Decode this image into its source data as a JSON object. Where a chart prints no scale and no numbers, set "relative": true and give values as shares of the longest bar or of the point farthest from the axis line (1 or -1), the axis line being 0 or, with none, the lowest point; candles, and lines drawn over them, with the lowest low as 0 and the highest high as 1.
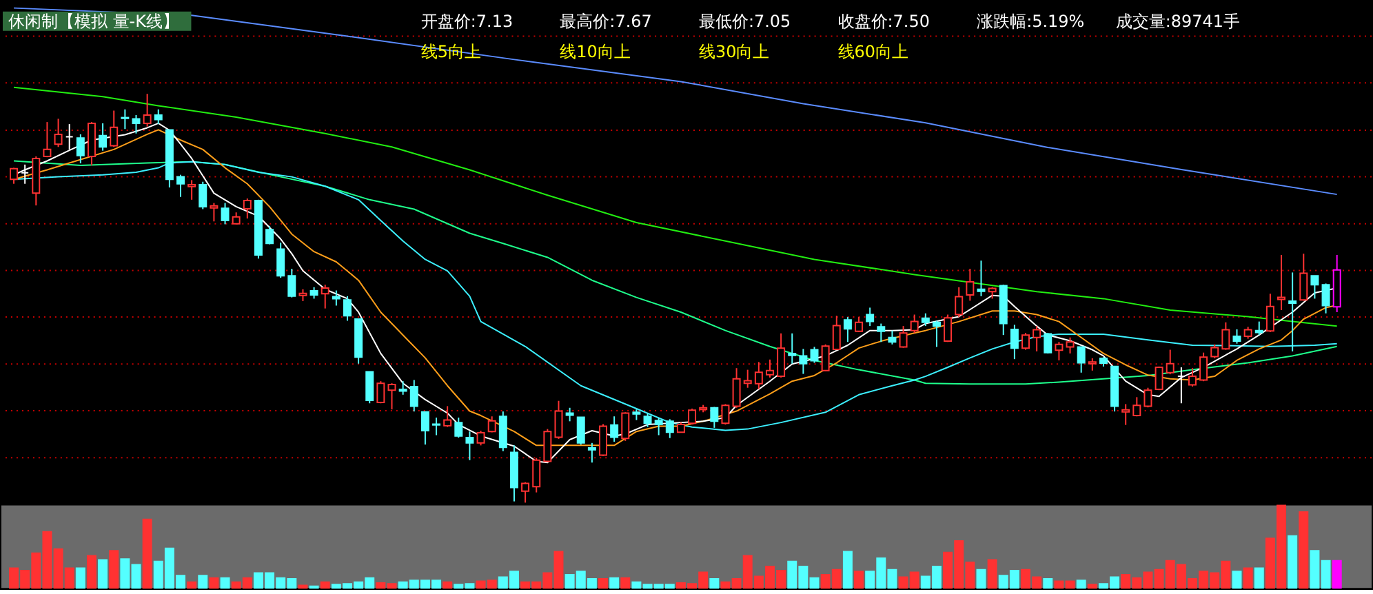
{
  "chart_data": [
    {
      "type": "candlestick",
      "title": "休闲制【模拟 量-K线】",
      "relative": true,
      "tick_labels": false,
      "annotations": [
        "开盘价:7.13",
        "最高价:7.67",
        "最低价:7.05",
        "收盘价:7.50",
        "涨跌幅:5.19%",
        "成交量:89741手",
        "线5向上",
        "线10向上",
        "线30向上",
        "线60向上"
      ],
      "categories": [
        null,
        null,
        null,
        null,
        null,
        null,
        null,
        null,
        null,
        null,
        null,
        null,
        null,
        null,
        null,
        null,
        null,
        null,
        null,
        null,
        null,
        null,
        null,
        null,
        null,
        null,
        null,
        null,
        null,
        null,
        null,
        null,
        null,
        null,
        null,
        null,
        null,
        null,
        null,
        null,
        null,
        null,
        null,
        null,
        null,
        null,
        null,
        null,
        null,
        null,
        null,
        null,
        null,
        null,
        null,
        null,
        null,
        null,
        null,
        null,
        null,
        null,
        null,
        null,
        null,
        null,
        null,
        null,
        null,
        null,
        null,
        null,
        null,
        null,
        null,
        null,
        null,
        null,
        null,
        null,
        null,
        null,
        null,
        null,
        null,
        null,
        null,
        null,
        null,
        null,
        null,
        null,
        null,
        null,
        null,
        null,
        null,
        null,
        null,
        null,
        null,
        null,
        null,
        null,
        null,
        null,
        null,
        null,
        null,
        null,
        null,
        null,
        null,
        null,
        null,
        null,
        null,
        null,
        null,
        null
      ],
      "ohlc": [
        [
          0.791,
          0.819,
          0.78,
          0.817
        ],
        [
          0.807,
          0.827,
          0.78,
          0.807
        ],
        [
          0.757,
          0.847,
          0.727,
          0.842
        ],
        [
          0.847,
          0.931,
          0.845,
          0.864
        ],
        [
          0.877,
          0.939,
          0.87,
          0.901
        ],
        [
          0.895,
          0.926,
          0.864,
          0.895
        ],
        [
          0.892,
          0.901,
          0.83,
          0.849
        ],
        [
          0.847,
          0.931,
          0.825,
          0.928
        ],
        [
          0.898,
          0.928,
          0.861,
          0.87
        ],
        [
          0.873,
          0.959,
          0.87,
          0.918
        ],
        [
          0.942,
          0.962,
          0.914,
          0.94
        ],
        [
          0.939,
          0.948,
          0.903,
          0.928
        ],
        [
          0.928,
          1.0,
          0.92,
          0.948
        ],
        [
          0.948,
          0.962,
          0.926,
          0.937
        ],
        [
          0.912,
          0.912,
          0.771,
          0.791
        ],
        [
          0.797,
          0.802,
          0.748,
          0.78
        ],
        [
          0.773,
          0.789,
          0.741,
          0.778
        ],
        [
          0.778,
          0.785,
          0.718,
          0.724
        ],
        [
          0.721,
          0.733,
          0.688,
          0.726
        ],
        [
          0.72,
          0.733,
          0.681,
          0.69
        ],
        [
          0.682,
          0.71,
          0.681,
          0.699
        ],
        [
          0.719,
          0.744,
          0.695,
          0.739
        ],
        [
          0.739,
          0.741,
          0.597,
          0.606
        ],
        [
          0.668,
          0.677,
          0.632,
          0.634
        ],
        [
          0.62,
          0.636,
          0.55,
          0.555
        ],
        [
          0.555,
          0.572,
          0.502,
          0.505
        ],
        [
          0.507,
          0.522,
          0.493,
          0.512
        ],
        [
          0.518,
          0.527,
          0.499,
          0.508
        ],
        [
          0.511,
          0.533,
          0.475,
          0.525
        ],
        [
          0.504,
          0.519,
          0.482,
          0.499
        ],
        [
          0.496,
          0.505,
          0.445,
          0.457
        ],
        [
          0.449,
          0.449,
          0.34,
          0.356
        ],
        [
          0.32,
          0.32,
          0.243,
          0.25
        ],
        [
          0.245,
          0.297,
          0.243,
          0.292
        ],
        [
          0.275,
          0.292,
          0.228,
          0.289
        ],
        [
          0.277,
          0.297,
          0.264,
          0.273
        ],
        [
          0.284,
          0.3,
          0.223,
          0.236
        ],
        [
          0.222,
          0.222,
          0.142,
          0.176
        ],
        [
          0.192,
          0.208,
          0.165,
          0.19
        ],
        [
          0.188,
          0.236,
          0.185,
          0.202
        ],
        [
          0.196,
          0.208,
          0.159,
          0.163
        ],
        [
          0.159,
          0.174,
          0.104,
          0.146
        ],
        [
          0.146,
          0.176,
          0.14,
          0.171
        ],
        [
          0.174,
          0.211,
          0.172,
          0.2
        ],
        [
          0.211,
          0.223,
          0.126,
          0.135
        ],
        [
          0.123,
          0.14,
          0.003,
          0.037
        ],
        [
          0.028,
          0.05,
          0.0,
          0.047
        ],
        [
          0.039,
          0.109,
          0.025,
          0.104
        ],
        [
          0.101,
          0.18,
          0.099,
          0.174
        ],
        [
          0.16,
          0.249,
          0.156,
          0.224
        ],
        [
          0.219,
          0.232,
          0.199,
          0.214
        ],
        [
          0.209,
          0.209,
          0.142,
          0.146
        ],
        [
          0.134,
          0.146,
          0.098,
          0.129
        ],
        [
          0.116,
          0.192,
          0.114,
          0.187
        ],
        [
          0.19,
          0.211,
          0.149,
          0.16
        ],
        [
          0.157,
          0.221,
          0.151,
          0.219
        ],
        [
          0.221,
          0.228,
          0.202,
          0.217
        ],
        [
          0.211,
          0.219,
          0.185,
          0.194
        ],
        [
          0.201,
          0.208,
          0.165,
          0.191
        ],
        [
          0.199,
          0.204,
          0.158,
          0.172
        ],
        [
          0.172,
          0.196,
          0.171,
          0.191
        ],
        [
          0.194,
          0.23,
          0.191,
          0.226
        ],
        [
          0.228,
          0.239,
          0.221,
          0.232
        ],
        [
          0.232,
          0.234,
          0.183,
          0.199
        ],
        [
          0.194,
          0.241,
          0.191,
          0.238
        ],
        [
          0.236,
          0.329,
          0.232,
          0.303
        ],
        [
          0.292,
          0.325,
          0.281,
          0.298
        ],
        [
          0.291,
          0.344,
          0.277,
          0.319
        ],
        [
          0.313,
          0.35,
          0.306,
          0.323
        ],
        [
          0.309,
          0.414,
          0.306,
          0.378
        ],
        [
          0.365,
          0.414,
          0.34,
          0.36
        ],
        [
          0.359,
          0.376,
          0.315,
          0.34
        ],
        [
          0.374,
          0.381,
          0.342,
          0.347
        ],
        [
          0.323,
          0.387,
          0.322,
          0.383
        ],
        [
          0.375,
          0.457,
          0.373,
          0.433
        ],
        [
          0.447,
          0.454,
          0.393,
          0.425
        ],
        [
          0.419,
          0.454,
          0.417,
          0.441
        ],
        [
          0.46,
          0.477,
          0.432,
          0.443
        ],
        [
          0.43,
          0.438,
          0.393,
          0.419
        ],
        [
          0.404,
          0.421,
          0.387,
          0.393
        ],
        [
          0.381,
          0.432,
          0.379,
          0.415
        ],
        [
          0.421,
          0.46,
          0.415,
          0.443
        ],
        [
          0.451,
          0.463,
          0.432,
          0.441
        ],
        [
          0.441,
          0.445,
          0.381,
          0.432
        ],
        [
          0.395,
          0.46,
          0.393,
          0.452
        ],
        [
          0.46,
          0.527,
          0.454,
          0.504
        ],
        [
          0.508,
          0.572,
          0.494,
          0.54
        ],
        [
          0.522,
          0.592,
          0.505,
          0.517
        ],
        [
          0.516,
          0.527,
          0.499,
          0.524
        ],
        [
          0.531,
          0.533,
          0.41,
          0.438
        ],
        [
          0.424,
          0.435,
          0.351,
          0.378
        ],
        [
          0.378,
          0.415,
          0.374,
          0.41
        ],
        [
          0.404,
          0.432,
          0.37,
          0.423
        ],
        [
          0.413,
          0.415,
          0.365,
          0.367
        ],
        [
          0.373,
          0.393,
          0.348,
          0.387
        ],
        [
          0.381,
          0.404,
          0.365,
          0.393
        ],
        [
          0.381,
          0.381,
          0.318,
          0.342
        ],
        [
          0.34,
          0.353,
          0.323,
          0.344
        ],
        [
          0.353,
          0.356,
          0.333,
          0.341
        ],
        [
          0.333,
          0.333,
          0.223,
          0.236
        ],
        [
          0.222,
          0.241,
          0.19,
          0.227
        ],
        [
          0.213,
          0.258,
          0.211,
          0.238
        ],
        [
          0.236,
          0.281,
          0.233,
          0.275
        ],
        [
          0.277,
          0.333,
          0.275,
          0.331
        ],
        [
          0.318,
          0.374,
          0.314,
          0.34
        ],
        [
          0.309,
          0.331,
          0.243,
          0.309
        ],
        [
          0.288,
          0.329,
          0.284,
          0.309
        ],
        [
          0.3,
          0.367,
          0.297,
          0.356
        ],
        [
          0.357,
          0.387,
          0.353,
          0.379
        ],
        [
          0.376,
          0.441,
          0.374,
          0.423
        ],
        [
          0.407,
          0.424,
          0.389,
          0.395
        ],
        [
          0.407,
          0.43,
          0.401,
          0.423
        ],
        [
          0.421,
          0.443,
          0.41,
          0.416
        ],
        [
          0.42,
          0.511,
          0.417,
          0.48
        ],
        [
          0.497,
          0.606,
          0.471,
          0.502
        ],
        [
          0.493,
          0.563,
          0.37,
          0.488
        ],
        [
          0.496,
          0.609,
          0.494,
          0.561
        ],
        [
          0.555,
          0.555,
          0.499,
          0.533
        ],
        [
          0.533,
          0.536,
          0.463,
          0.482
        ],
        [
          0.479,
          0.606,
          0.466,
          0.569
        ]
      ],
      "colors": [
        "#ff3232",
        "#ffffff",
        "#ff3232",
        "#ff3232",
        "#ff3232",
        "#ffffff",
        "#54ffff",
        "#ff3232",
        "#54ffff",
        "#ff3232",
        "#54ffff",
        "#54ffff",
        "#ff3232",
        "#54ffff",
        "#54ffff",
        "#54ffff",
        "#ff3232",
        "#54ffff",
        "#ff3232",
        "#54ffff",
        "#ff3232",
        "#ff3232",
        "#54ffff",
        "#54ffff",
        "#54ffff",
        "#54ffff",
        "#ff3232",
        "#54ffff",
        "#ff3232",
        "#54ffff",
        "#54ffff",
        "#54ffff",
        "#54ffff",
        "#ff3232",
        "#ff3232",
        "#54ffff",
        "#54ffff",
        "#54ffff",
        "#54ffff",
        "#ff3232",
        "#54ffff",
        "#54ffff",
        "#ff3232",
        "#ff3232",
        "#54ffff",
        "#54ffff",
        "#ff3232",
        "#ff3232",
        "#ff3232",
        "#ff3232",
        "#54ffff",
        "#54ffff",
        "#54ffff",
        "#ff3232",
        "#54ffff",
        "#ff3232",
        "#54ffff",
        "#54ffff",
        "#54ffff",
        "#54ffff",
        "#ff3232",
        "#ff3232",
        "#ff3232",
        "#54ffff",
        "#ff3232",
        "#ff3232",
        "#ff3232",
        "#ff3232",
        "#ff3232",
        "#ff3232",
        "#54ffff",
        "#54ffff",
        "#54ffff",
        "#ff3232",
        "#ff3232",
        "#54ffff",
        "#ff3232",
        "#54ffff",
        "#54ffff",
        "#54ffff",
        "#ff3232",
        "#ff3232",
        "#54ffff",
        "#54ffff",
        "#ff3232",
        "#ff3232",
        "#ff3232",
        "#54ffff",
        "#ff3232",
        "#54ffff",
        "#54ffff",
        "#ff3232",
        "#ff3232",
        "#54ffff",
        "#ff3232",
        "#ff3232",
        "#54ffff",
        "#ff3232",
        "#54ffff",
        "#54ffff",
        "#ff3232",
        "#ff3232",
        "#ff3232",
        "#ff3232",
        "#ff3232",
        "#ffffff",
        "#ff3232",
        "#ff3232",
        "#ff3232",
        "#ff3232",
        "#54ffff",
        "#ff3232",
        "#54ffff",
        "#ff3232",
        "#ff3232",
        "#54ffff",
        "#ff3232",
        "#54ffff",
        "#54ffff",
        "#ff00ff"
      ],
      "ref_lines": [
        {
          "axis": "y",
          "value": 1.141,
          "color": "#c80000",
          "line_style": "dotted"
        },
        {
          "axis": "y",
          "value": 1.027,
          "color": "#c80000",
          "line_style": "dotted"
        },
        {
          "axis": "y",
          "value": 0.911,
          "color": "#c80000",
          "line_style": "dotted"
        },
        {
          "axis": "y",
          "value": 0.797,
          "color": "#c80000",
          "line_style": "dotted"
        },
        {
          "axis": "y",
          "value": 0.682,
          "color": "#c80000",
          "line_style": "dotted"
        },
        {
          "axis": "y",
          "value": 0.568,
          "color": "#c80000",
          "line_style": "dotted"
        },
        {
          "axis": "y",
          "value": 0.454,
          "color": "#c80000",
          "line_style": "dotted"
        },
        {
          "axis": "y",
          "value": 0.339,
          "color": "#c80000",
          "line_style": "dotted"
        },
        {
          "axis": "y",
          "value": 0.225,
          "color": "#c80000",
          "line_style": "dotted"
        },
        {
          "axis": "y",
          "value": 0.11,
          "color": "#c80000",
          "line_style": "dotted"
        }
      ],
      "series": [
        {
          "type": "line",
          "color": "#5b8cff",
          "values": [
            1.21,
            null,
            null,
            null,
            null,
            null,
            null,
            null,
            null,
            null,
            null,
            null,
            null,
            null,
            null,
            null,
            1.192,
            null,
            null,
            null,
            null,
            null,
            null,
            null,
            null,
            null,
            null,
            null,
            null,
            null,
            1.141,
            null,
            null,
            null,
            null,
            null,
            null,
            null,
            null,
            null,
            null,
            null,
            null,
            null,
            null,
            1.084,
            null,
            null,
            null,
            null,
            null,
            null,
            null,
            null,
            null,
            null,
            null,
            null,
            null,
            null,
            1.03,
            null,
            null,
            null,
            null,
            null,
            null,
            null,
            null,
            null,
            null,
            0.976,
            null,
            null,
            null,
            null,
            null,
            null,
            null,
            null,
            null,
            null,
            0.929,
            null,
            null,
            null,
            null,
            null,
            null,
            null,
            null,
            null,
            null,
            0.869,
            null,
            null,
            null,
            null,
            null,
            null,
            null,
            null,
            null,
            null,
            null,
            0.815,
            null,
            null,
            null,
            null,
            null,
            null,
            null,
            null,
            null,
            null,
            null,
            null,
            null,
            0.754
          ]
        },
        {
          "type": "line",
          "color": "#22ee11",
          "values": [
            1.016,
            null,
            null,
            null,
            null,
            null,
            null,
            null,
            0.993,
            null,
            null,
            null,
            null,
            0.971,
            null,
            null,
            null,
            null,
            null,
            null,
            0.943,
            null,
            null,
            null,
            null,
            null,
            null,
            null,
            0.903,
            null,
            null,
            null,
            null,
            null,
            0.87,
            null,
            null,
            null,
            null,
            null,
            null,
            0.814,
            null,
            null,
            null,
            null,
            null,
            null,
            0.752,
            null,
            null,
            null,
            null,
            null,
            null,
            null,
            0.685,
            null,
            null,
            null,
            null,
            null,
            null,
            null,
            0.64,
            null,
            null,
            null,
            null,
            null,
            null,
            null,
            0.595,
            null,
            null,
            null,
            null,
            null,
            null,
            null,
            null,
            0.558,
            null,
            null,
            null,
            null,
            0.539,
            null,
            null,
            null,
            null,
            null,
            0.516,
            null,
            null,
            null,
            null,
            null,
            0.499,
            null,
            null,
            null,
            null,
            null,
            0.471,
            null,
            null,
            null,
            null,
            null,
            null,
            0.455,
            null,
            null,
            null,
            0.443,
            null,
            null,
            null,
            0.432
          ]
        },
        {
          "type": "line",
          "color": "#1eff8c",
          "values": [
            0.836,
            null,
            null,
            null,
            null,
            null,
            0.825,
            null,
            null,
            null,
            null,
            null,
            0.831,
            null,
            null,
            null,
            0.834,
            null,
            null,
            0.827,
            null,
            null,
            null,
            null,
            0.797,
            null,
            null,
            null,
            0.774,
            null,
            null,
            null,
            0.741,
            null,
            null,
            null,
            0.718,
            null,
            null,
            null,
            null,
            0.659,
            null,
            null,
            0.634,
            null,
            null,
            null,
            0.6,
            null,
            null,
            null,
            0.544,
            null,
            null,
            null,
            0.502,
            null,
            null,
            null,
            0.466,
            null,
            null,
            null,
            0.421,
            null,
            null,
            null,
            0.382,
            null,
            null,
            null,
            0.348,
            null,
            null,
            null,
            0.325,
            null,
            null,
            null,
            null,
            0.3,
            0.292,
            null,
            null,
            null,
            0.29,
            null,
            null,
            null,
            null,
            0.29,
            null,
            null,
            0.295,
            null,
            null,
            null,
            0.303,
            null,
            null,
            null,
            0.311,
            null,
            null,
            null,
            0.325,
            null,
            null,
            null,
            null,
            0.342,
            null,
            null,
            null,
            0.359,
            null,
            null,
            null,
            0.382
          ]
        },
        {
          "type": "line",
          "color": "#3cf0ff",
          "values": [
            0.791,
            null,
            null,
            null,
            0.797,
            null,
            null,
            null,
            0.802,
            null,
            null,
            0.808,
            null,
            0.819,
            0.831,
            null,
            0.834,
            null,
            null,
            0.827,
            null,
            null,
            0.808,
            null,
            null,
            0.797,
            null,
            null,
            0.774,
            null,
            null,
            0.741,
            null,
            0.69,
            null,
            0.64,
            null,
            0.595,
            null,
            0.567,
            null,
            0.505,
            0.443,
            null,
            null,
            null,
            0.382,
            null,
            null,
            null,
            null,
            0.286,
            null,
            null,
            null,
            null,
            0.23,
            null,
            null,
            0.196,
            null,
            0.185,
            null,
            null,
            0.177,
            null,
            0.18,
            null,
            null,
            0.196,
            null,
            null,
            null,
            0.221,
            null,
            null,
            0.264,
            null,
            null,
            0.286,
            null,
            0.3,
            0.309,
            null,
            0.331,
            null,
            0.354,
            null,
            0.376,
            null,
            0.393,
            null,
            0.406,
            null,
            0.412,
            null,
            null,
            null,
            0.412,
            null,
            null,
            null,
            0.398,
            null,
            null,
            null,
            0.385,
            null,
            null,
            0.384,
            null,
            null,
            null,
            0.382,
            null,
            null,
            null,
            0.385,
            null,
            0.389
          ]
        },
        {
          "type": "line",
          "color": "#ff9f1a",
          "values": [
            0.791,
            null,
            null,
            0.814,
            null,
            0.831,
            null,
            null,
            null,
            0.864,
            null,
            null,
            0.901,
            0.912,
            null,
            0.887,
            null,
            0.864,
            null,
            0.819,
            null,
            0.78,
            null,
            0.724,
            null,
            0.657,
            null,
            0.614,
            null,
            0.589,
            null,
            0.544,
            null,
            0.466,
            null,
            0.41,
            null,
            0.354,
            null,
            0.286,
            null,
            0.224,
            0.213,
            null,
            null,
            0.174,
            null,
            0.14,
            null,
            null,
            0.14,
            null,
            0.14,
            null,
            0.14,
            null,
            0.174,
            null,
            0.187,
            null,
            0.187,
            null,
            0.199,
            null,
            null,
            0.224,
            null,
            null,
            0.266,
            null,
            0.297,
            null,
            0.311,
            null,
            0.342,
            null,
            0.378,
            null,
            0.395,
            null,
            null,
            0.415,
            0.421,
            null,
            null,
            0.443,
            null,
            null,
            0.469,
            null,
            0.469,
            null,
            0.46,
            null,
            0.443,
            null,
            0.404,
            null,
            0.365,
            null,
            0.337,
            null,
            0.312,
            null,
            0.303,
            null,
            0.3,
            null,
            0.309,
            null,
            0.348,
            null,
            0.376,
            null,
            0.398,
            0.421,
            0.449,
            null,
            0.477,
            0.483
          ]
        },
        {
          "type": "line",
          "color": "#ffffff",
          "values": [
            0.802,
            0.814,
            null,
            0.836,
            null,
            0.862,
            null,
            0.887,
            null,
            null,
            0.9,
            null,
            0.917,
            0.928,
            0.911,
            0.877,
            0.842,
            null,
            0.757,
            null,
            0.724,
            null,
            0.701,
            null,
            0.645,
            0.609,
            0.567,
            null,
            0.522,
            null,
            0.499,
            0.466,
            null,
            0.365,
            null,
            0.292,
            null,
            0.252,
            null,
            0.219,
            0.191,
            null,
            0.163,
            null,
            null,
            0.138,
            null,
            0.101,
            0.098,
            null,
            0.154,
            null,
            0.176,
            null,
            0.163,
            0.168,
            null,
            0.191,
            null,
            null,
            0.196,
            null,
            0.199,
            null,
            0.208,
            0.238,
            null,
            null,
            0.297,
            null,
            0.339,
            null,
            null,
            0.359,
            null,
            0.385,
            null,
            0.421,
            null,
            0.421,
            null,
            0.423,
            0.438,
            null,
            null,
            0.455,
            null,
            null,
            0.507,
            0.505,
            0.48,
            null,
            0.432,
            0.41,
            null,
            0.396,
            null,
            0.374,
            0.359,
            null,
            0.297,
            null,
            0.264,
            0.26,
            null,
            0.306,
            null,
            0.331,
            null,
            null,
            0.376,
            null,
            0.41,
            null,
            null,
            0.466,
            null,
            0.513,
            null,
            0.525
          ]
        }
      ]
    },
    {
      "type": "bar",
      "relative": true,
      "tick_labels": false,
      "categories": [
        null,
        null,
        null,
        null,
        null,
        null,
        null,
        null,
        null,
        null,
        null,
        null,
        null,
        null,
        null,
        null,
        null,
        null,
        null,
        null,
        null,
        null,
        null,
        null,
        null,
        null,
        null,
        null,
        null,
        null,
        null,
        null,
        null,
        null,
        null,
        null,
        null,
        null,
        null,
        null,
        null,
        null,
        null,
        null,
        null,
        null,
        null,
        null,
        null,
        null,
        null,
        null,
        null,
        null,
        null,
        null,
        null,
        null,
        null,
        null,
        null,
        null,
        null,
        null,
        null,
        null,
        null,
        null,
        null,
        null,
        null,
        null,
        null,
        null,
        null,
        null,
        null,
        null,
        null,
        null,
        null,
        null,
        null,
        null,
        null,
        null,
        null,
        null,
        null,
        null,
        null,
        null,
        null,
        null,
        null,
        null,
        null,
        null,
        null,
        null,
        null,
        null,
        null,
        null,
        null,
        null,
        null,
        null,
        null,
        null,
        null,
        null,
        null,
        null,
        null,
        null,
        null,
        null,
        null,
        null
      ],
      "values": [
        0.24,
        0.21,
        0.42,
        0.68,
        0.47,
        0.24,
        0.24,
        0.39,
        0.34,
        0.45,
        0.35,
        0.28,
        0.83,
        0.32,
        0.48,
        0.15,
        0.07,
        0.15,
        0.12,
        0.12,
        0.07,
        0.12,
        0.18,
        0.18,
        0.12,
        0.11,
        0.03,
        0.02,
        0.07,
        0.04,
        0.05,
        0.07,
        0.12,
        0.06,
        0.05,
        0.07,
        0.09,
        0.09,
        0.09,
        0.07,
        0.04,
        0.05,
        0.08,
        0.09,
        0.13,
        0.2,
        0.07,
        0.07,
        0.18,
        0.44,
        0.16,
        0.2,
        0.11,
        0.11,
        0.12,
        0.12,
        0.07,
        0.04,
        0.04,
        0.04,
        0.06,
        0.05,
        0.19,
        0.11,
        0.07,
        0.11,
        0.39,
        0.14,
        0.26,
        0.21,
        0.32,
        0.26,
        0.12,
        0.16,
        0.22,
        0.44,
        0.2,
        0.2,
        0.36,
        0.22,
        0.13,
        0.19,
        0.14,
        0.26,
        0.43,
        0.57,
        0.31,
        0.22,
        0.34,
        0.15,
        0.21,
        0.22,
        0.13,
        0.11,
        0.08,
        0.08,
        0.09,
        0.04,
        0.05,
        0.13,
        0.16,
        0.12,
        0.19,
        0.22,
        0.33,
        0.28,
        0.11,
        0.2,
        0.18,
        0.32,
        0.2,
        0.24,
        0.24,
        0.6,
        1.0,
        0.63,
        0.92,
        0.45,
        0.33,
        0.33
      ],
      "colors": [
        "#ff3232",
        "#ff3232",
        "#ff3232",
        "#ff3232",
        "#ff3232",
        "#ff3232",
        "#54ffff",
        "#ff3232",
        "#54ffff",
        "#ff3232",
        "#54ffff",
        "#54ffff",
        "#ff3232",
        "#54ffff",
        "#54ffff",
        "#54ffff",
        "#ff3232",
        "#54ffff",
        "#ff3232",
        "#54ffff",
        "#ff3232",
        "#ff3232",
        "#54ffff",
        "#54ffff",
        "#54ffff",
        "#54ffff",
        "#ff3232",
        "#54ffff",
        "#ff3232",
        "#54ffff",
        "#54ffff",
        "#54ffff",
        "#54ffff",
        "#ff3232",
        "#ff3232",
        "#54ffff",
        "#54ffff",
        "#54ffff",
        "#54ffff",
        "#ff3232",
        "#54ffff",
        "#54ffff",
        "#ff3232",
        "#ff3232",
        "#54ffff",
        "#54ffff",
        "#ff3232",
        "#ff3232",
        "#ff3232",
        "#ff3232",
        "#54ffff",
        "#54ffff",
        "#54ffff",
        "#ff3232",
        "#54ffff",
        "#ff3232",
        "#54ffff",
        "#54ffff",
        "#54ffff",
        "#54ffff",
        "#ff3232",
        "#ff3232",
        "#ff3232",
        "#54ffff",
        "#ff3232",
        "#ff3232",
        "#ff3232",
        "#ff3232",
        "#ff3232",
        "#ff3232",
        "#54ffff",
        "#54ffff",
        "#54ffff",
        "#ff3232",
        "#ff3232",
        "#54ffff",
        "#ff3232",
        "#54ffff",
        "#54ffff",
        "#54ffff",
        "#ff3232",
        "#ff3232",
        "#54ffff",
        "#54ffff",
        "#ff3232",
        "#ff3232",
        "#ff3232",
        "#54ffff",
        "#ff3232",
        "#54ffff",
        "#54ffff",
        "#ff3232",
        "#ff3232",
        "#54ffff",
        "#ff3232",
        "#ff3232",
        "#54ffff",
        "#ff3232",
        "#54ffff",
        "#54ffff",
        "#ff3232",
        "#ff3232",
        "#ff3232",
        "#ff3232",
        "#ff3232",
        "#ff3232",
        "#ff3232",
        "#ff3232",
        "#ff3232",
        "#ff3232",
        "#54ffff",
        "#ff3232",
        "#54ffff",
        "#ff3232",
        "#ff3232",
        "#54ffff",
        "#ff3232",
        "#54ffff",
        "#54ffff",
        "#ff00ff"
      ]
    }
  ]
}
